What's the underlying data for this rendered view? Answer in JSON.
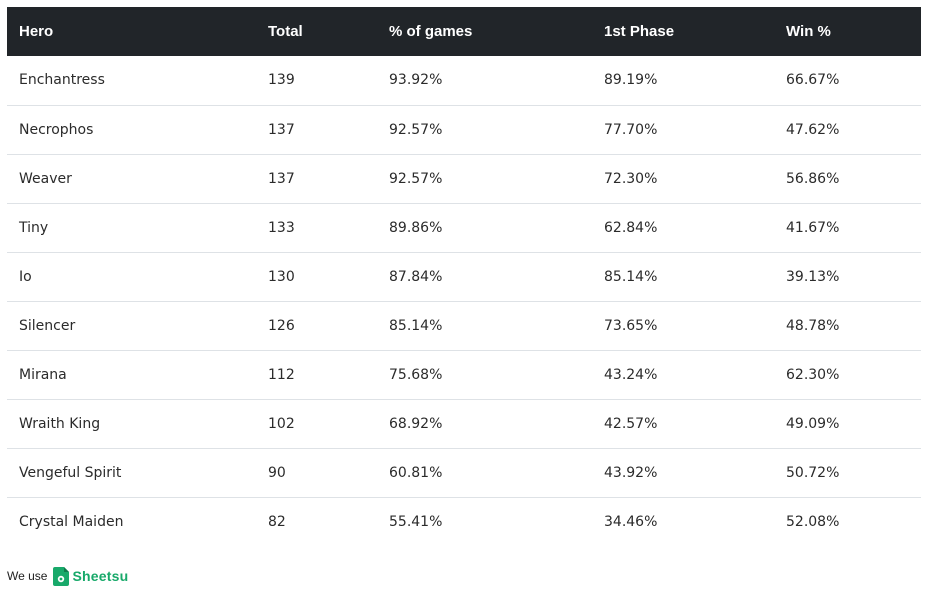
{
  "table": {
    "headers": {
      "hero": "Hero",
      "total": "Total",
      "pct_games": "% of games",
      "first_phase": "1st Phase",
      "win_pct": "Win %"
    },
    "rows": [
      {
        "hero": "Enchantress",
        "total": "139",
        "pct_games": "93.92%",
        "first_phase": "89.19%",
        "win_pct": "66.67%"
      },
      {
        "hero": "Necrophos",
        "total": "137",
        "pct_games": "92.57%",
        "first_phase": "77.70%",
        "win_pct": "47.62%"
      },
      {
        "hero": "Weaver",
        "total": "137",
        "pct_games": "92.57%",
        "first_phase": "72.30%",
        "win_pct": "56.86%"
      },
      {
        "hero": "Tiny",
        "total": "133",
        "pct_games": "89.86%",
        "first_phase": "62.84%",
        "win_pct": "41.67%"
      },
      {
        "hero": "Io",
        "total": "130",
        "pct_games": "87.84%",
        "first_phase": "85.14%",
        "win_pct": "39.13%"
      },
      {
        "hero": "Silencer",
        "total": "126",
        "pct_games": "85.14%",
        "first_phase": "73.65%",
        "win_pct": "48.78%"
      },
      {
        "hero": "Mirana",
        "total": "112",
        "pct_games": "75.68%",
        "first_phase": "43.24%",
        "win_pct": "62.30%"
      },
      {
        "hero": "Wraith King",
        "total": "102",
        "pct_games": "68.92%",
        "first_phase": "42.57%",
        "win_pct": "49.09%"
      },
      {
        "hero": "Vengeful Spirit",
        "total": "90",
        "pct_games": "60.81%",
        "first_phase": "43.92%",
        "win_pct": "50.72%"
      },
      {
        "hero": "Crystal Maiden",
        "total": "82",
        "pct_games": "55.41%",
        "first_phase": "34.46%",
        "win_pct": "52.08%"
      }
    ]
  },
  "footer": {
    "prefix": "We use",
    "brand": "Sheetsu",
    "brand_icon": "sheetsu-logo-icon",
    "brand_color": "#18a96a"
  },
  "colors": {
    "header_bg": "#212529",
    "header_text": "#ffffff",
    "row_divider": "#dee2e6"
  }
}
